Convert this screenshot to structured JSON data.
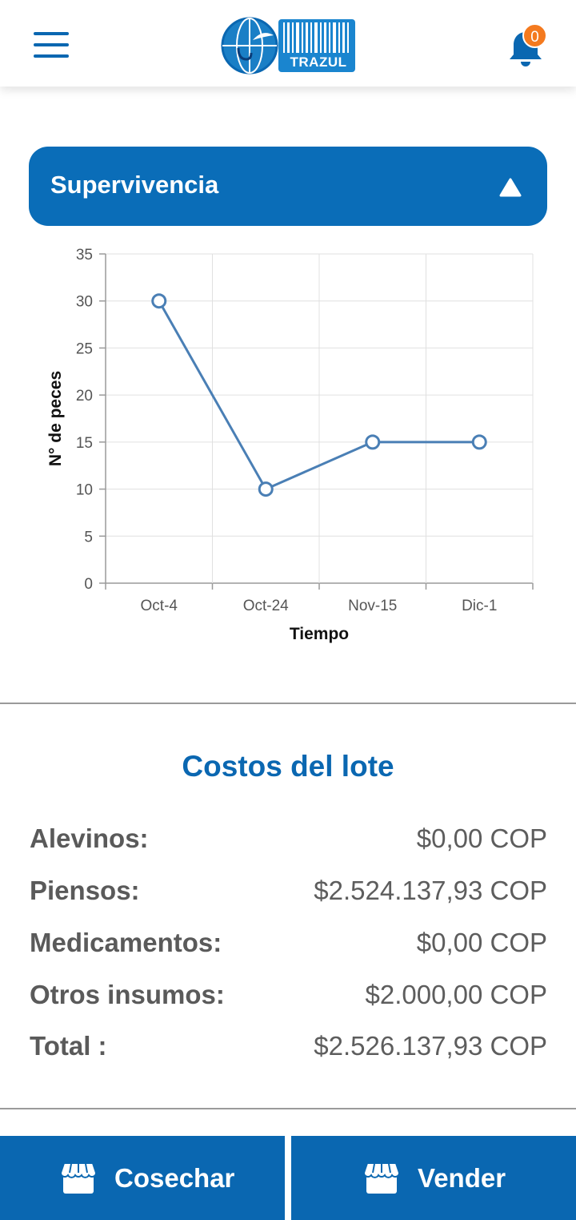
{
  "header": {
    "logo_text": "TRAZUL",
    "notification_count": "0"
  },
  "accordion": {
    "title": "Supervivencia",
    "expanded": true
  },
  "chart_data": {
    "type": "line",
    "categories": [
      "Oct-4",
      "Oct-24",
      "Nov-15",
      "Dic-1"
    ],
    "values": [
      30,
      10,
      15,
      15
    ],
    "xlabel": "Tiempo",
    "ylabel": "N° de peces",
    "ylim": [
      0,
      35
    ],
    "yticks": [
      0,
      5,
      10,
      15,
      20,
      25,
      30,
      35
    ],
    "grid": true,
    "color": "#4a7fb5"
  },
  "costs": {
    "title": "Costos del lote",
    "rows": [
      {
        "label": "Alevinos:",
        "value": "$0,00 COP"
      },
      {
        "label": "Piensos:",
        "value": "$2.524.137,93 COP"
      },
      {
        "label": "Medicamentos:",
        "value": "$0,00 COP"
      },
      {
        "label": "Otros insumos:",
        "value": "$2.000,00 COP"
      },
      {
        "label": "Total :",
        "value": "$2.526.137,93 COP"
      }
    ]
  },
  "actions": {
    "harvest_label": "Cosechar",
    "sell_label": "Vender"
  },
  "colors": {
    "primary": "#0a67b1",
    "badge": "#f47a1f"
  }
}
